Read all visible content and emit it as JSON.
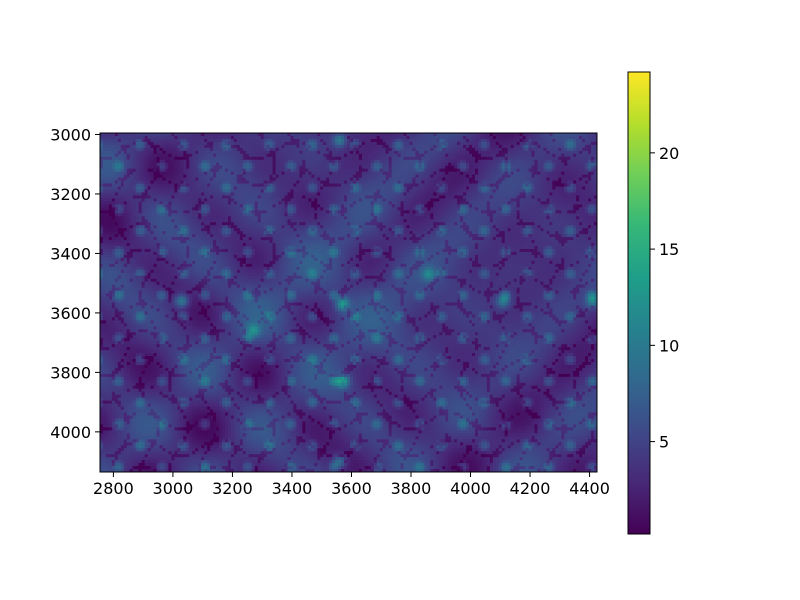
{
  "chart_data": {
    "type": "heatmap",
    "title": "",
    "xlabel": "",
    "ylabel": "",
    "xlim": [
      2755,
      4425
    ],
    "ylim": [
      4135,
      2995
    ],
    "x_ticks": [
      2800,
      3000,
      3200,
      3400,
      3600,
      3800,
      4000,
      4200,
      4400
    ],
    "y_ticks": [
      3000,
      3200,
      3400,
      3600,
      3800,
      4000
    ],
    "colormap": "viridis",
    "colorbar": {
      "range": [
        0.2,
        24.2
      ],
      "ticks": [
        5,
        10,
        15,
        20
      ]
    },
    "field": {
      "background_value": 3.8,
      "bright_spots": [
        {
          "x": 3570,
          "y": 3830,
          "v": 13
        },
        {
          "x": 3570,
          "y": 3570,
          "v": 12
        },
        {
          "x": 3030,
          "y": 3560,
          "v": 11
        },
        {
          "x": 4110,
          "y": 3560,
          "v": 10.5
        },
        {
          "x": 4410,
          "y": 3560,
          "v": 10.5
        },
        {
          "x": 3270,
          "y": 3660,
          "v": 10
        },
        {
          "x": 3560,
          "y": 3020,
          "v": 10
        },
        {
          "x": 3560,
          "y": 4100,
          "v": 10
        },
        {
          "x": 3860,
          "y": 3470,
          "v": 9.5
        }
      ]
    }
  },
  "colors": {
    "viridis": [
      "#440154",
      "#482878",
      "#3e4a89",
      "#31688e",
      "#26828e",
      "#1f9e89",
      "#35b779",
      "#6ece58",
      "#b5de2b",
      "#fde725"
    ],
    "axis": "#000000",
    "background": "#ffffff"
  }
}
